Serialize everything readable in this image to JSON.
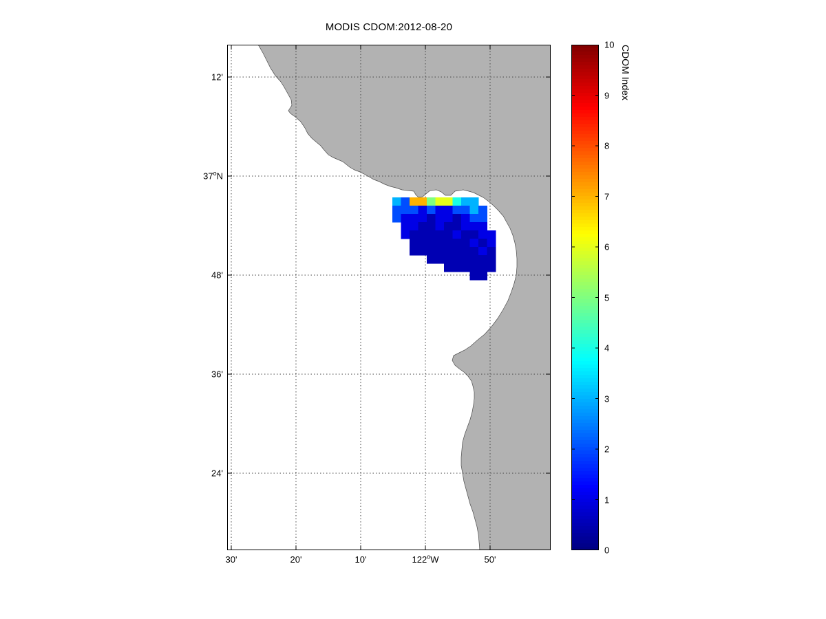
{
  "figure": {
    "title": "MODIS CDOM:2012-08-20",
    "colors": {
      "land": "#b2b2b2",
      "ocean": "#ffffff",
      "grid": "#444444",
      "frame": "#000000",
      "coastline": "#4d4d4d"
    }
  },
  "axes": {
    "x_tick_labels": [
      "30'",
      "20'",
      "10'",
      "122°W",
      "50'"
    ],
    "y_tick_labels": [
      "12'",
      "37°N",
      "48'",
      "36'",
      "24'"
    ]
  },
  "colorbar": {
    "label": "CDOM Index",
    "tick_labels": [
      "0",
      "1",
      "2",
      "3",
      "4",
      "5",
      "6",
      "7",
      "8",
      "9",
      "10"
    ],
    "min": 0,
    "max": 10,
    "colormap": "jet"
  },
  "chart_data": {
    "type": "heatmap",
    "title": "MODIS CDOM:2012-08-20",
    "colormap": "jet",
    "value_label": "CDOM Index",
    "value_range": [
      0,
      10
    ],
    "x_tick_labels": [
      "30'",
      "20'",
      "10'",
      "122°W",
      "50'"
    ],
    "y_tick_labels": [
      "12'",
      "37°N",
      "48'",
      "36'",
      "24'"
    ],
    "colorbar_ticks": [
      0,
      1,
      2,
      3,
      4,
      5,
      6,
      7,
      8,
      9,
      10
    ],
    "cells_format": "[row, col, cdom_index] — row 0 is northernmost data row, col 0 is westernmost data column",
    "cells": [
      [
        0,
        0,
        3
      ],
      [
        0,
        1,
        2
      ],
      [
        0,
        2,
        7
      ],
      [
        0,
        3,
        7
      ],
      [
        0,
        4,
        5
      ],
      [
        0,
        5,
        6
      ],
      [
        0,
        6,
        6
      ],
      [
        0,
        7,
        4
      ],
      [
        0,
        8,
        3
      ],
      [
        0,
        9,
        3
      ],
      [
        1,
        0,
        2
      ],
      [
        1,
        1,
        2
      ],
      [
        1,
        2,
        2
      ],
      [
        1,
        3,
        1
      ],
      [
        1,
        4,
        2
      ],
      [
        1,
        5,
        1
      ],
      [
        1,
        6,
        1
      ],
      [
        1,
        7,
        2
      ],
      [
        1,
        8,
        2
      ],
      [
        1,
        9,
        3
      ],
      [
        1,
        10,
        2
      ],
      [
        2,
        0,
        2
      ],
      [
        2,
        1,
        1
      ],
      [
        2,
        2,
        1
      ],
      [
        2,
        3,
        1
      ],
      [
        2,
        4,
        0.5
      ],
      [
        2,
        5,
        1
      ],
      [
        2,
        6,
        1
      ],
      [
        2,
        7,
        0.5
      ],
      [
        2,
        8,
        1
      ],
      [
        2,
        9,
        2
      ],
      [
        2,
        10,
        2
      ],
      [
        3,
        1,
        1
      ],
      [
        3,
        2,
        1
      ],
      [
        3,
        3,
        0.5
      ],
      [
        3,
        4,
        0.5
      ],
      [
        3,
        5,
        1
      ],
      [
        3,
        6,
        0.5
      ],
      [
        3,
        7,
        0.5
      ],
      [
        3,
        8,
        1
      ],
      [
        3,
        9,
        1
      ],
      [
        3,
        10,
        1
      ],
      [
        4,
        1,
        1
      ],
      [
        4,
        2,
        0.5
      ],
      [
        4,
        3,
        0.5
      ],
      [
        4,
        4,
        0.5
      ],
      [
        4,
        5,
        0.5
      ],
      [
        4,
        6,
        0.5
      ],
      [
        4,
        7,
        1
      ],
      [
        4,
        8,
        0.5
      ],
      [
        4,
        9,
        0.5
      ],
      [
        4,
        10,
        1
      ],
      [
        4,
        11,
        1
      ],
      [
        5,
        2,
        0.5
      ],
      [
        5,
        3,
        0.5
      ],
      [
        5,
        4,
        0.5
      ],
      [
        5,
        5,
        0.5
      ],
      [
        5,
        6,
        0.5
      ],
      [
        5,
        7,
        0.5
      ],
      [
        5,
        8,
        0.5
      ],
      [
        5,
        9,
        1
      ],
      [
        5,
        10,
        0.5
      ],
      [
        5,
        11,
        1
      ],
      [
        6,
        2,
        0.5
      ],
      [
        6,
        3,
        0.5
      ],
      [
        6,
        4,
        0.5
      ],
      [
        6,
        5,
        0.5
      ],
      [
        6,
        6,
        0.5
      ],
      [
        6,
        7,
        0.5
      ],
      [
        6,
        8,
        0.5
      ],
      [
        6,
        9,
        0.5
      ],
      [
        6,
        10,
        1
      ],
      [
        6,
        11,
        0.5
      ],
      [
        7,
        4,
        0.5
      ],
      [
        7,
        5,
        0.5
      ],
      [
        7,
        6,
        0.5
      ],
      [
        7,
        7,
        0.5
      ],
      [
        7,
        8,
        0.5
      ],
      [
        7,
        9,
        0.5
      ],
      [
        7,
        10,
        0.5
      ],
      [
        7,
        11,
        0.5
      ],
      [
        8,
        6,
        0.5
      ],
      [
        8,
        7,
        0.5
      ],
      [
        8,
        8,
        0.5
      ],
      [
        8,
        9,
        0.5
      ],
      [
        8,
        10,
        0.5
      ],
      [
        8,
        11,
        0.5
      ],
      [
        9,
        9,
        0.5
      ],
      [
        9,
        10,
        0.5
      ]
    ]
  }
}
